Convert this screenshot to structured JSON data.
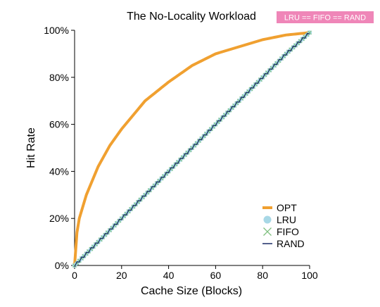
{
  "chart_data": {
    "type": "line",
    "title": "The No-Locality Workload",
    "annotation": "LRU == FIFO == RAND",
    "xlabel": "Cache Size (Blocks)",
    "ylabel": "Hit Rate",
    "xlim": [
      0,
      100
    ],
    "ylim": [
      0,
      100
    ],
    "x_ticks": [
      0,
      20,
      40,
      60,
      80,
      100
    ],
    "y_ticks": [
      0,
      20,
      40,
      60,
      80,
      100
    ],
    "x_tick_labels": [
      "0",
      "20",
      "40",
      "60",
      "80",
      "100"
    ],
    "y_tick_labels": [
      "0%",
      "20%",
      "40%",
      "60%",
      "80%",
      "100%"
    ],
    "legend_position": "lower-right",
    "series": [
      {
        "name": "OPT",
        "color": "#f0a030",
        "marker": "line",
        "x": [
          0,
          1,
          2,
          5,
          10,
          15,
          20,
          25,
          30,
          40,
          50,
          60,
          70,
          80,
          90,
          100
        ],
        "y": [
          0,
          14,
          20,
          30,
          42,
          51,
          58,
          64,
          70,
          78,
          85,
          90,
          93,
          96,
          98,
          99
        ]
      },
      {
        "name": "LRU",
        "color": "#a8d8e6",
        "marker": "circle",
        "x": [
          0,
          10,
          20,
          30,
          40,
          50,
          60,
          70,
          80,
          90,
          100
        ],
        "y": [
          0,
          10,
          20,
          30,
          40,
          50,
          60,
          70,
          80,
          90,
          99
        ]
      },
      {
        "name": "FIFO",
        "color": "#7dbf7d",
        "marker": "x",
        "x": [
          0,
          10,
          20,
          30,
          40,
          50,
          60,
          70,
          80,
          90,
          100
        ],
        "y": [
          0,
          10,
          20,
          30,
          40,
          50,
          60,
          70,
          80,
          90,
          99
        ]
      },
      {
        "name": "RAND",
        "color": "#1a2a66",
        "marker": "line",
        "x": [
          0,
          10,
          20,
          30,
          40,
          50,
          60,
          70,
          80,
          90,
          100
        ],
        "y": [
          0,
          10,
          20,
          30,
          40,
          50,
          60,
          70,
          80,
          90,
          99
        ]
      }
    ]
  }
}
